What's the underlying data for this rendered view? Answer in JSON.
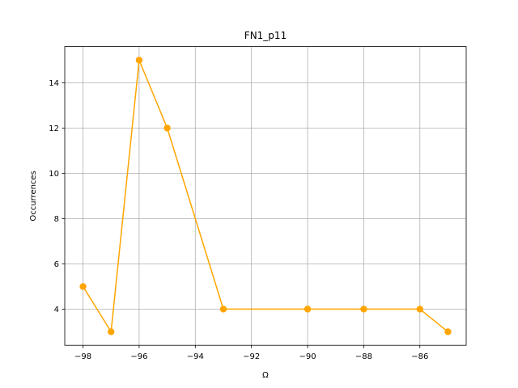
{
  "chart_data": {
    "type": "line",
    "title": "FN1_p11",
    "xlabel": "Ω",
    "ylabel": "Occurrences",
    "x": [
      -98,
      -97,
      -96,
      -95,
      -93,
      -90,
      -88,
      -86,
      -85
    ],
    "series": [
      {
        "values": [
          5,
          3,
          15,
          12,
          4,
          4,
          4,
          4,
          3
        ]
      }
    ],
    "xlim": [
      -98.65,
      -84.35
    ],
    "ylim": [
      2.4,
      15.6
    ],
    "xticks": [
      -98,
      -96,
      -94,
      -92,
      -90,
      -88,
      -86
    ],
    "yticks": [
      4,
      6,
      8,
      10,
      12,
      14
    ],
    "grid": true,
    "line_color": "#ffa500",
    "marker": "circle"
  }
}
